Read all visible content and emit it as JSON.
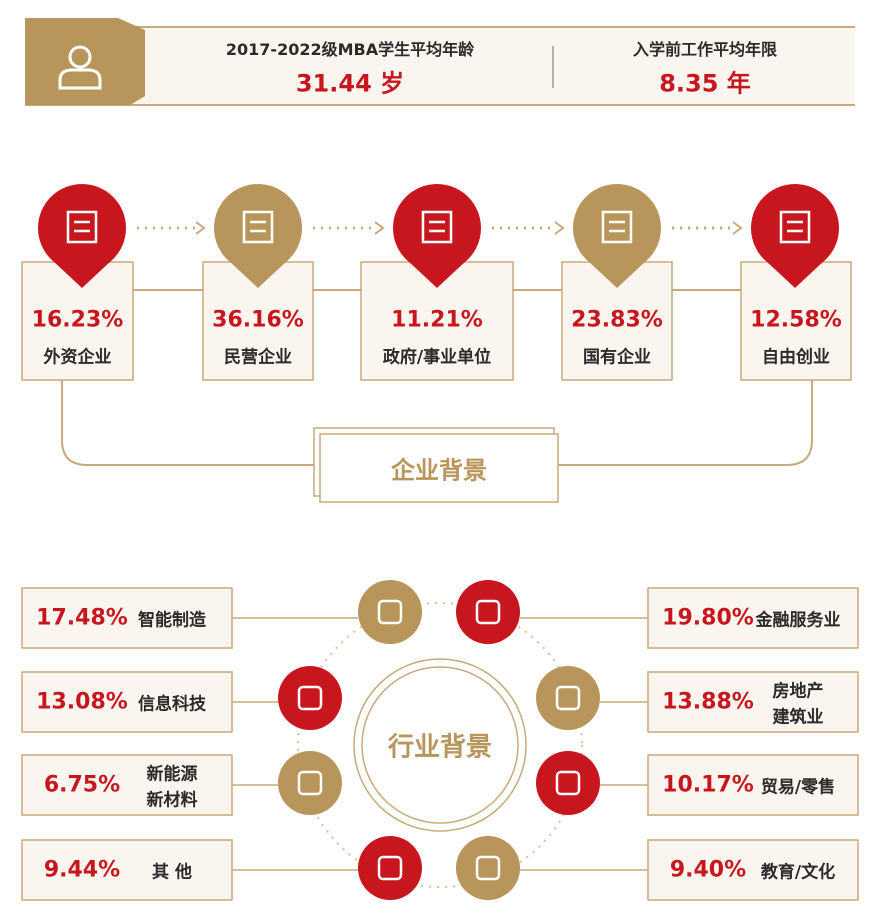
{
  "header": {
    "stats": [
      {
        "label": "2017-2022级MBA学生平均年龄",
        "value": "31.44 岁"
      },
      {
        "label": "入学前工作平均年限",
        "value": "8.35 年"
      }
    ]
  },
  "company": {
    "title": "企业背景",
    "items": [
      {
        "percent": "16.23%",
        "label": "外资企业"
      },
      {
        "percent": "36.16%",
        "label": "民营企业"
      },
      {
        "percent": "11.21%",
        "label": "政府/事业单位"
      },
      {
        "percent": "23.83%",
        "label": "国有企业"
      },
      {
        "percent": "12.58%",
        "label": "自由创业"
      }
    ]
  },
  "industry": {
    "title": "行业背景",
    "left": [
      {
        "percent": "17.48%",
        "label": [
          "智能制造"
        ]
      },
      {
        "percent": "13.08%",
        "label": [
          "信息科技"
        ]
      },
      {
        "percent": "6.75%",
        "label": [
          "新能源",
          "新材料"
        ]
      },
      {
        "percent": "9.44%",
        "label": [
          "其 他"
        ]
      }
    ],
    "right": [
      {
        "percent": "19.80%",
        "label": [
          "金融服务业"
        ]
      },
      {
        "percent": "13.88%",
        "label": [
          "房地产",
          "建筑业"
        ]
      },
      {
        "percent": "10.17%",
        "label": [
          "贸易/零售"
        ]
      },
      {
        "percent": "9.40%",
        "label": [
          "教育/文化"
        ]
      }
    ]
  }
}
